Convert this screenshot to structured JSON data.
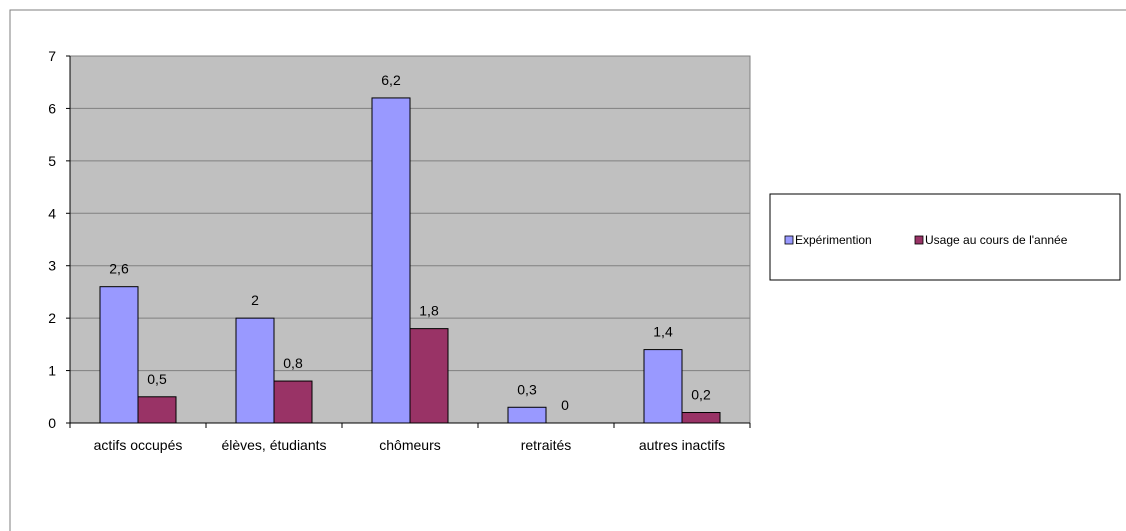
{
  "chart_data": {
    "type": "bar",
    "categories": [
      "actifs occupés",
      "élèves, étudiants",
      "chômeurs",
      "retraités",
      "autres inactifs"
    ],
    "series": [
      {
        "name": "Expérimention",
        "values": [
          2.6,
          2,
          6.2,
          0.3,
          1.4
        ],
        "labels": [
          "2,6",
          "2",
          "6,2",
          "0,3",
          "1,4"
        ]
      },
      {
        "name": "Usage au cours de l'année",
        "values": [
          0.5,
          0.8,
          1.8,
          0,
          0.2
        ],
        "labels": [
          "0,5",
          "0,8",
          "1,8",
          "0",
          "0,2"
        ]
      }
    ],
    "ylim": [
      0,
      7
    ],
    "yticks": [
      "0",
      "1",
      "2",
      "3",
      "4",
      "5",
      "6",
      "7"
    ],
    "grid": true,
    "legend_position": "right",
    "title": "",
    "xlabel": "",
    "ylabel": ""
  },
  "colors": {
    "series": [
      "#9999ff",
      "#993366"
    ],
    "plot_background": "#c0c0c0",
    "grid": "#808080"
  }
}
